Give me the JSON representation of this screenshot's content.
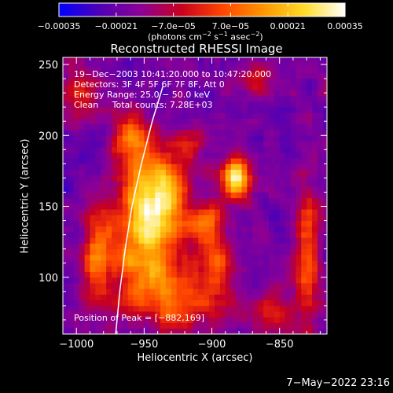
{
  "chart_data": {
    "type": "heatmap",
    "title": "Reconstructed RHESSI Image",
    "xlabel": "Heliocentric X (arcsec)",
    "ylabel": "Heliocentric Y (arcsec)",
    "xlim": [
      -1010,
      -815
    ],
    "ylim": [
      60,
      255
    ],
    "x_ticks": [
      -1000,
      -950,
      -900,
      -850
    ],
    "x_tick_labels": [
      "−1000",
      "−950",
      "−900",
      "−850"
    ],
    "y_ticks": [
      100,
      150,
      200,
      250
    ],
    "y_tick_labels": [
      "100",
      "150",
      "200",
      "250"
    ],
    "colorbar": {
      "range": [
        -0.00035,
        0.00035
      ],
      "tick_labels": [
        "−0.00035",
        "−0.00021",
        "−7.0e−05",
        "7.0e−05",
        "0.00021",
        "0.00035"
      ],
      "unit_parts": [
        "(photons cm",
        "−2",
        " s",
        "−1",
        " asec",
        "−2",
        ")"
      ],
      "colormap": [
        "#0000ff",
        "#5000b4",
        "#8c0096",
        "#c8001e",
        "#ff4600",
        "#ff9600",
        "#ffdc28",
        "#ffffff"
      ]
    },
    "annotations": [
      "19−Dec−2003 10:41:20.000 to 10:47:20.000",
      "Detectors: 3F 4F 5F 6F 7F 8F, Att 0",
      "Energy Range: 25.0 − 50.0 keV",
      "Clean     Total counts: 7.28E+03"
    ],
    "peak_label": "Position of Peak = [−882,169]",
    "peak": [
      -882,
      169
    ],
    "sources": [
      {
        "x": -882,
        "y": 170,
        "sx": 7,
        "sy": 10,
        "a": 1.0
      },
      {
        "x": -942,
        "y": 160,
        "sx": 16,
        "sy": 22,
        "a": 0.85
      },
      {
        "x": -960,
        "y": 200,
        "sx": 9,
        "sy": 12,
        "a": 0.55
      },
      {
        "x": -950,
        "y": 120,
        "sx": 18,
        "sy": 25,
        "a": 0.6
      },
      {
        "x": -925,
        "y": 85,
        "sx": 25,
        "sy": 15,
        "a": 0.5
      },
      {
        "x": -905,
        "y": 140,
        "sx": 9,
        "sy": 10,
        "a": 0.5
      },
      {
        "x": -895,
        "y": 115,
        "sx": 10,
        "sy": 12,
        "a": 0.4
      },
      {
        "x": -830,
        "y": 115,
        "sx": 7,
        "sy": 35,
        "a": 0.5
      },
      {
        "x": -985,
        "y": 115,
        "sx": 8,
        "sy": 25,
        "a": 0.45
      },
      {
        "x": -995,
        "y": 230,
        "sx": 10,
        "sy": 12,
        "a": 0.35
      },
      {
        "x": -870,
        "y": 240,
        "sx": 12,
        "sy": 8,
        "a": 0.3
      },
      {
        "x": -855,
        "y": 75,
        "sx": 10,
        "sy": 10,
        "a": 0.35
      },
      {
        "x": -915,
        "y": 195,
        "sx": 8,
        "sy": 8,
        "a": 0.25
      }
    ],
    "limb": [
      [
        -971,
        60
      ],
      [
        -968,
        90
      ],
      [
        -964,
        120
      ],
      [
        -959,
        150
      ],
      [
        -952,
        180
      ],
      [
        -944,
        210
      ],
      [
        -936,
        235
      ]
    ]
  },
  "footer_timestamp": "7−May−2022 23:16"
}
